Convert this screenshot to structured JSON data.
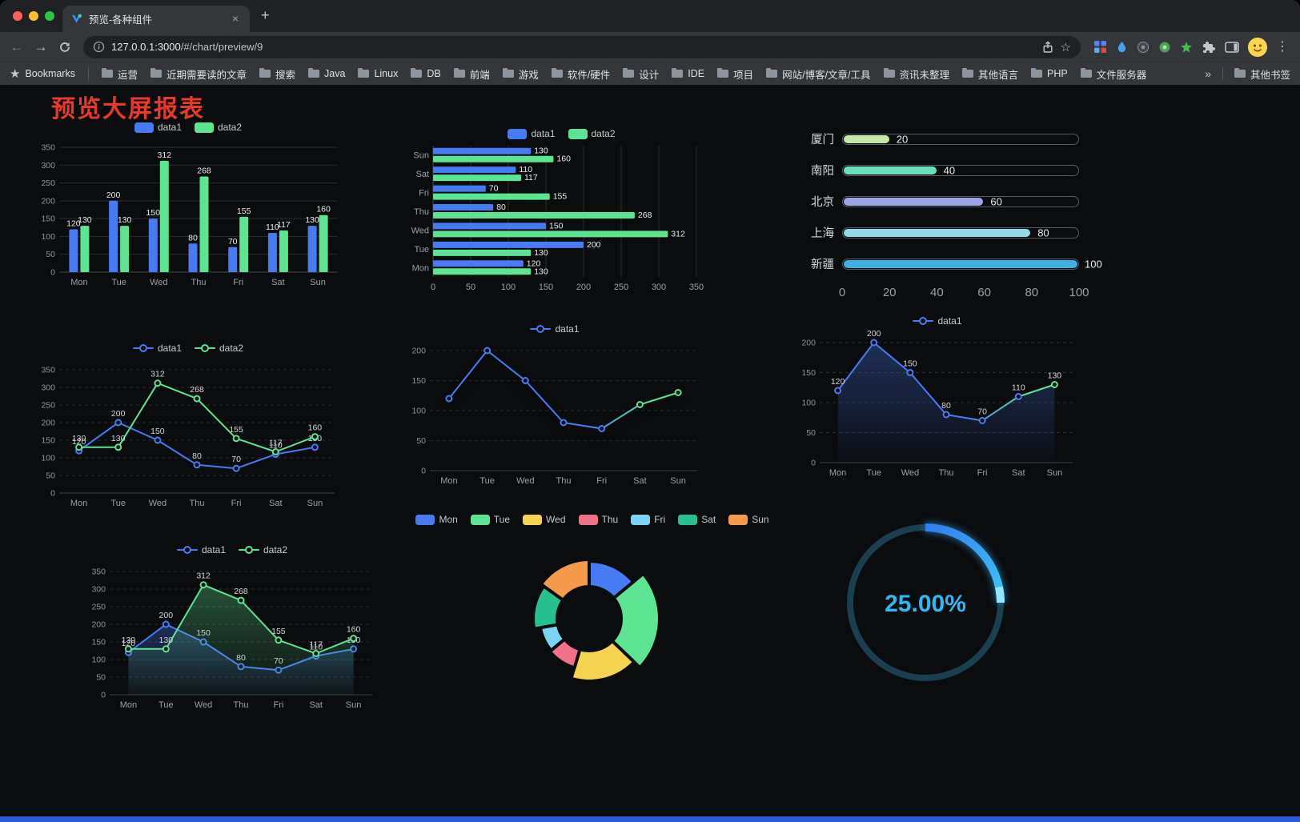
{
  "browser": {
    "tab": {
      "title": "预览-各种组件"
    },
    "url": {
      "host": "127.0.0.1:3000",
      "path": "/#/chart/preview/9"
    },
    "bookmarks_bar": {
      "label": "Bookmarks",
      "items": [
        "运营",
        "近期需要读的文章",
        "搜索",
        "Java",
        "Linux",
        "DB",
        "前端",
        "游戏",
        "软件/硬件",
        "设计",
        "IDE",
        "项目",
        "网站/博客/文章/工具",
        "资讯未整理",
        "其他语言",
        "PHP",
        "文件服务器"
      ],
      "overflow": "»",
      "other": "其他书签"
    }
  },
  "page": {
    "title": "预览大屏报表",
    "title_color": "#e73a28"
  },
  "chart_data": [
    {
      "id": "bar-vertical",
      "type": "bar",
      "legend_marker": "pill",
      "categories": [
        "Mon",
        "Tue",
        "Wed",
        "Thu",
        "Fri",
        "Sat",
        "Sun"
      ],
      "series": [
        {
          "name": "data1",
          "color": "#477BF4",
          "values": [
            120,
            200,
            150,
            80,
            70,
            110,
            130
          ]
        },
        {
          "name": "data2",
          "color": "#5CE492",
          "values": [
            130,
            130,
            312,
            268,
            155,
            117,
            160
          ]
        }
      ],
      "ylim": [
        0,
        350
      ],
      "yticks": [
        0,
        50,
        100,
        150,
        200,
        250,
        300,
        350
      ],
      "legend_position": "top"
    },
    {
      "id": "bar-horizontal",
      "type": "bar-horizontal",
      "legend_marker": "pill",
      "categories": [
        "Mon",
        "Tue",
        "Wed",
        "Thu",
        "Fri",
        "Sat",
        "Sun"
      ],
      "series": [
        {
          "name": "data1",
          "color": "#477BF4",
          "values": [
            120,
            200,
            150,
            80,
            70,
            110,
            130
          ]
        },
        {
          "name": "data2",
          "color": "#5CE492",
          "values": [
            130,
            130,
            312,
            268,
            155,
            117,
            160
          ]
        }
      ],
      "xlim": [
        0,
        350
      ],
      "xticks": [
        0,
        50,
        100,
        150,
        200,
        250,
        300,
        350
      ]
    },
    {
      "id": "progress-bars",
      "type": "bar-progress",
      "categories": [
        "厦门",
        "南阳",
        "北京",
        "上海",
        "新疆"
      ],
      "values": [
        20,
        40,
        60,
        80,
        100
      ],
      "colors": [
        "#C5E8A6",
        "#69E0BC",
        "#9DA4E8",
        "#93D9E6",
        "#3FB0E3"
      ],
      "xlim": [
        0,
        100
      ],
      "xticks": [
        0,
        20,
        40,
        60,
        80,
        100
      ]
    },
    {
      "id": "line-dual",
      "type": "line",
      "legend_marker": "line",
      "labels": true,
      "categories": [
        "Mon",
        "Tue",
        "Wed",
        "Thu",
        "Fri",
        "Sat",
        "Sun"
      ],
      "series": [
        {
          "name": "data1",
          "color": "#477BF4",
          "values": [
            120,
            200,
            150,
            80,
            70,
            110,
            130
          ]
        },
        {
          "name": "data2",
          "color": "#5CE492",
          "values": [
            130,
            130,
            312,
            268,
            155,
            117,
            160
          ]
        }
      ],
      "ylim": [
        0,
        350
      ],
      "yticks": [
        0,
        50,
        100,
        150,
        200,
        250,
        300,
        350
      ]
    },
    {
      "id": "line-single-gradient",
      "type": "line",
      "legend_marker": "line",
      "labels": false,
      "shadow": true,
      "categories": [
        "Mon",
        "Tue",
        "Wed",
        "Thu",
        "Fri",
        "Sat",
        "Sun"
      ],
      "series": [
        {
          "name": "data1",
          "color": "#477BF4",
          "color2": "#5CE492",
          "values": [
            120,
            200,
            150,
            80,
            70,
            110,
            130
          ]
        }
      ],
      "ylim": [
        0,
        200
      ],
      "yticks": [
        0,
        50,
        100,
        150,
        200
      ]
    },
    {
      "id": "area-single",
      "type": "area",
      "legend_marker": "line",
      "labels": true,
      "categories": [
        "Mon",
        "Tue",
        "Wed",
        "Thu",
        "Fri",
        "Sat",
        "Sun"
      ],
      "series": [
        {
          "name": "data1",
          "color": "#477BF4",
          "color2": "#5CE492",
          "area_color": "#477BF4",
          "values": [
            120,
            200,
            150,
            80,
            70,
            110,
            130
          ]
        }
      ],
      "ylim": [
        0,
        200
      ],
      "yticks": [
        0,
        50,
        100,
        150,
        200
      ]
    },
    {
      "id": "area-dual",
      "type": "area",
      "legend_marker": "line",
      "labels": true,
      "categories": [
        "Mon",
        "Tue",
        "Wed",
        "Thu",
        "Fri",
        "Sat",
        "Sun"
      ],
      "series": [
        {
          "name": "data1",
          "color": "#477BF4",
          "area_color": "#477BF4",
          "values": [
            120,
            200,
            150,
            80,
            70,
            110,
            130
          ]
        },
        {
          "name": "data2",
          "color": "#5CE492",
          "area_color": "#5CE492",
          "values": [
            130,
            130,
            312,
            268,
            155,
            117,
            160
          ]
        }
      ],
      "ylim": [
        0,
        350
      ],
      "yticks": [
        0,
        50,
        100,
        150,
        200,
        250,
        300,
        350
      ]
    },
    {
      "id": "rose-pie",
      "type": "pie",
      "legend_marker": "pill",
      "categories": [
        "Mon",
        "Tue",
        "Wed",
        "Thu",
        "Fri",
        "Sat",
        "Sun"
      ],
      "values": [
        120,
        200,
        150,
        80,
        70,
        110,
        130
      ],
      "colors": [
        "#477BF4",
        "#5CE492",
        "#F5D34F",
        "#F1708A",
        "#7AD4F4",
        "#27C08F",
        "#F59A4A"
      ]
    },
    {
      "id": "gauge",
      "type": "gauge",
      "value_label": "25.00%",
      "percent": 25,
      "color": "#2FB9F3",
      "gradient": [
        "#2E7EF0",
        "#3FC6F6"
      ],
      "cap_color": "#90E6FF",
      "track_color": "#1A3F4E"
    }
  ]
}
